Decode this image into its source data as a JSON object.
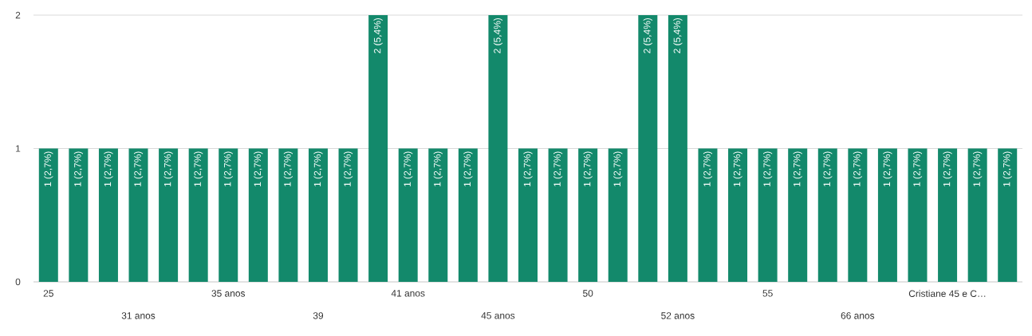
{
  "chart_data": {
    "type": "bar",
    "categories": [
      "25",
      null,
      null,
      "31 anos",
      null,
      null,
      "35 anos",
      null,
      null,
      "39",
      null,
      null,
      "41 anos",
      null,
      null,
      "45 anos",
      null,
      null,
      "50",
      null,
      null,
      "52 anos",
      null,
      null,
      "55",
      null,
      null,
      "66 anos",
      null,
      null,
      "Cristiane 45 e C…",
      null,
      null
    ],
    "values": [
      1,
      1,
      1,
      1,
      1,
      1,
      1,
      1,
      1,
      1,
      1,
      2,
      1,
      1,
      1,
      2,
      1,
      1,
      1,
      1,
      2,
      2,
      1,
      1,
      1,
      1,
      1,
      1,
      1,
      1,
      1,
      1,
      1
    ],
    "value_labels": [
      "1 (2,7%)",
      "1 (2,7%)",
      "1 (2,7%)",
      "1 (2,7%)",
      "1 (2,7%)",
      "1 (2,7%)",
      "1 (2,7%)",
      "1 (2,7%)",
      "1 (2,7%)",
      "1 (2,7%)",
      "1 (2,7%)",
      "2 (5,4%)",
      "1 (2,7%)",
      "1 (2,7%)",
      "1 (2,7%)",
      "2 (5,4%)",
      "1 (2,7%)",
      "1 (2,7%)",
      "1 (2,7%)",
      "1 (2,7%)",
      "2 (5,4%)",
      "2 (5,4%)",
      "1 (2,7%)",
      "1 (2,7%)",
      "1 (2,7%)",
      "1 (2,7%)",
      "1 (2,7%)",
      "1 (2,7%)",
      "1 (2,7%)",
      "1 (2,7%)",
      "1 (2,7%)",
      "1 (2,7%)",
      "1 (2,7%)"
    ],
    "color": "#13896b",
    "ylim": [
      0,
      2
    ],
    "yticks": [
      0,
      1,
      2
    ],
    "grid": "y"
  }
}
